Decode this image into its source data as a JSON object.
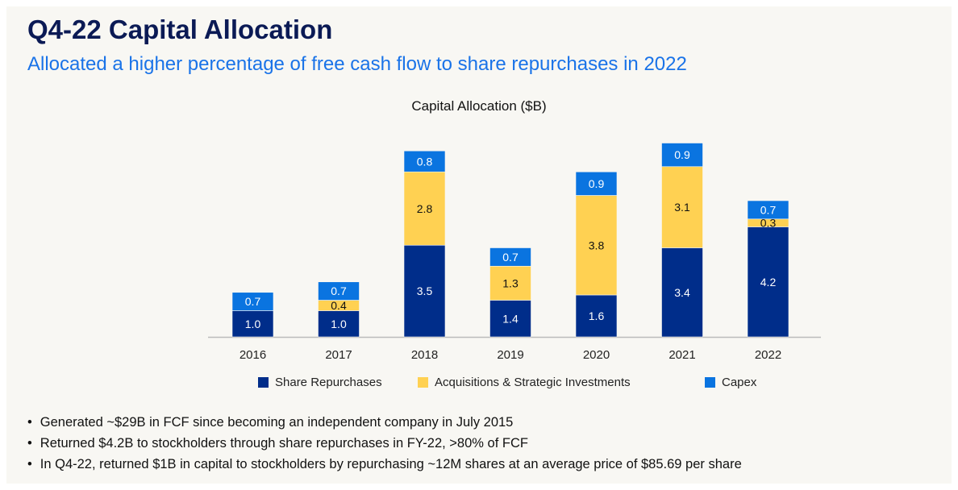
{
  "title": "Q4-22 Capital Allocation",
  "subtitle": "Allocated a higher percentage of free cash flow to share repurchases in 2022",
  "bullets": [
    "Generated ~$29B in FCF since becoming an independent company in July 2015",
    "Returned $4.2B to stockholders through share repurchases in FY-22, >80% of FCF",
    "In Q4-22, returned $1B in capital to stockholders by repurchasing ~12M shares at an average price of $85.69 per share"
  ],
  "chart_data": {
    "type": "bar",
    "stacked": true,
    "title": "Capital Allocation ($B)",
    "categories": [
      "2016",
      "2017",
      "2018",
      "2019",
      "2020",
      "2021",
      "2022"
    ],
    "series": [
      {
        "name": "Share Repurchases",
        "values": [
          1.0,
          1.0,
          3.5,
          1.4,
          1.6,
          3.4,
          4.2
        ],
        "color": "#002d8a",
        "label_color": "#ffffff"
      },
      {
        "name": "Acquisitions & Strategic Investments",
        "values": [
          null,
          0.4,
          2.8,
          1.3,
          3.8,
          3.1,
          0.3
        ],
        "color": "#ffd152",
        "label_color": "#111111"
      },
      {
        "name": "Capex",
        "values": [
          0.7,
          0.7,
          0.8,
          0.7,
          0.9,
          0.9,
          0.7
        ],
        "color": "#0a74e0",
        "label_color": "#ffffff"
      }
    ],
    "legend": "bottom",
    "grid": false,
    "y_axis_visible": false
  }
}
